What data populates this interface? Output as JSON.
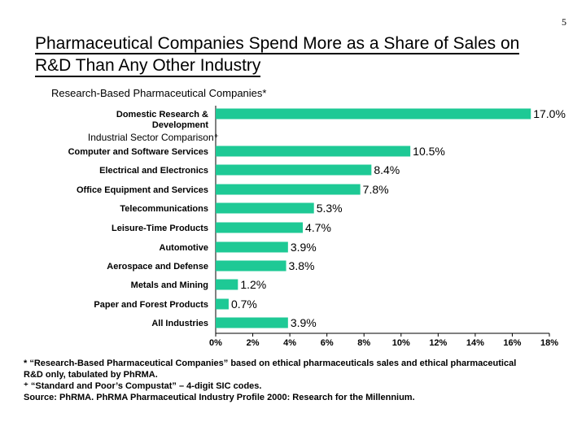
{
  "page_number": "5",
  "title_line1": "Pharmaceutical Companies Spend More as a Share of Sales on",
  "title_line2": "R&D Than Any Other Industry",
  "subtitle": "Research-Based Pharmaceutical Companies*",
  "colors": {
    "bar": "#1ec995",
    "axis": "#000000"
  },
  "chart_data": {
    "type": "bar",
    "orientation": "horizontal",
    "group_label": "Industrial Sector Comparison⁺",
    "categories": [
      "Domestic Research & Development",
      "Computer and Software Services",
      "Electrical and Electronics",
      "Office Equipment and Services",
      "Telecommunications",
      "Leisure-Time Products",
      "Automotive",
      "Aerospace and Defense",
      "Metals and Mining",
      "Paper and Forest Products",
      "All Industries"
    ],
    "values": [
      17.0,
      10.5,
      8.4,
      7.8,
      5.3,
      4.7,
      3.9,
      3.8,
      1.2,
      0.7,
      3.9
    ],
    "value_labels": [
      "17.0%",
      "10.5%",
      "8.4%",
      "7.8%",
      "5.3%",
      "4.7%",
      "3.9%",
      "3.8%",
      "1.2%",
      "0.7%",
      "3.9%"
    ],
    "xlim": [
      0,
      18
    ],
    "x_ticks": [
      0,
      2,
      4,
      6,
      8,
      10,
      12,
      14,
      16,
      18
    ],
    "x_tick_labels": [
      "0%",
      "2%",
      "4%",
      "6%",
      "8%",
      "10%",
      "12%",
      "14%",
      "16%",
      "18%"
    ],
    "grid": false
  },
  "footnotes": [
    "* “Research-Based Pharmaceutical Companies” based on ethical pharmaceuticals sales and ethical pharmaceutical",
    "R&D only,  tabulated by PhRMA.",
    "⁺ “Standard and Poor’s Compustat” – 4-digit SIC codes.",
    "Source: PhRMA.  PhRMA Pharmaceutical Industry Profile 2000: Research for the Millennium."
  ]
}
